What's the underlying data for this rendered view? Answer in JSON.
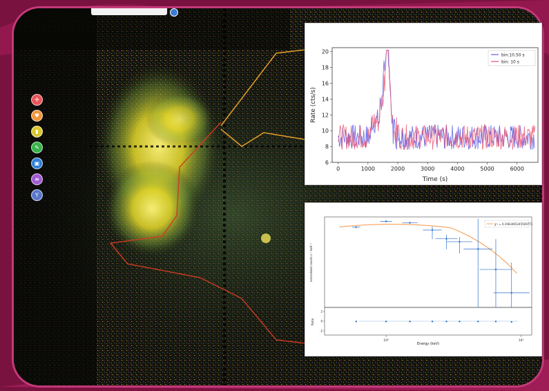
{
  "tools": [
    {
      "name": "crosshair-icon",
      "color": "#e8545a",
      "glyph": "✛"
    },
    {
      "name": "heart-icon",
      "color": "#f0963a",
      "glyph": "♥"
    },
    {
      "name": "note-icon",
      "color": "#d9c82b",
      "glyph": "▮"
    },
    {
      "name": "edit-icon",
      "color": "#38b34a",
      "glyph": "✎"
    },
    {
      "name": "image-icon",
      "color": "#2f7fd6",
      "glyph": "▣"
    },
    {
      "name": "list-icon",
      "color": "#a25bd1",
      "glyph": "≡"
    },
    {
      "name": "filter-icon",
      "color": "#5a78c9",
      "glyph": "Y"
    }
  ],
  "chart_data": [
    {
      "type": "line",
      "xlabel": "Time (s)",
      "ylabel": "Rate (cts/s)",
      "xlim": [
        -200,
        6700
      ],
      "ylim": [
        6,
        20.5
      ],
      "xticks": [
        "0",
        "1000",
        "2000",
        "3000",
        "4000",
        "5000",
        "6000"
      ],
      "yticks": [
        "6",
        "8",
        "10",
        "12",
        "14",
        "16",
        "18",
        "20"
      ],
      "legend_position": "top-right",
      "series": [
        {
          "name": "bin:10.50 s",
          "color": "#5a5ae6"
        },
        {
          "name": "bin: 10 s",
          "color": "#e8506e"
        }
      ],
      "flare": {
        "peak_time": 1650,
        "peak_rate": 19.8,
        "baseline": 9.2
      }
    },
    {
      "type": "scatter",
      "legend": "χ²ᵣ = 0.1963465245509771",
      "xlabel": "Energy (keV)",
      "ylabel": "normalized counts s⁻¹ keV⁻¹",
      "ratio_label": "Ratio",
      "x_tick_labels": [
        "10⁰",
        "10¹"
      ],
      "ratio_tick_labels": [
        "2",
        "0",
        "-2"
      ],
      "data_color": "#2a6fc9",
      "model_color": "#f5a05a",
      "points": [
        {
          "energy": 0.6,
          "log_flux": -0.65,
          "ratio": -0.05
        },
        {
          "energy": 1.0,
          "log_flux": -0.45,
          "ratio": -0.05
        },
        {
          "energy": 1.5,
          "log_flux": -0.5,
          "ratio": -0.05
        },
        {
          "energy": 2.2,
          "log_flux": -0.75,
          "ratio": -0.05
        },
        {
          "energy": 2.8,
          "log_flux": -1.05,
          "ratio": -0.05
        },
        {
          "energy": 3.5,
          "log_flux": -1.15,
          "ratio": -0.05
        },
        {
          "energy": 4.8,
          "log_flux": -1.4,
          "ratio": -0.05
        },
        {
          "energy": 6.5,
          "log_flux": -2.1,
          "ratio": -0.05
        },
        {
          "energy": 8.5,
          "log_flux": -2.9,
          "ratio": -0.15
        }
      ]
    }
  ]
}
